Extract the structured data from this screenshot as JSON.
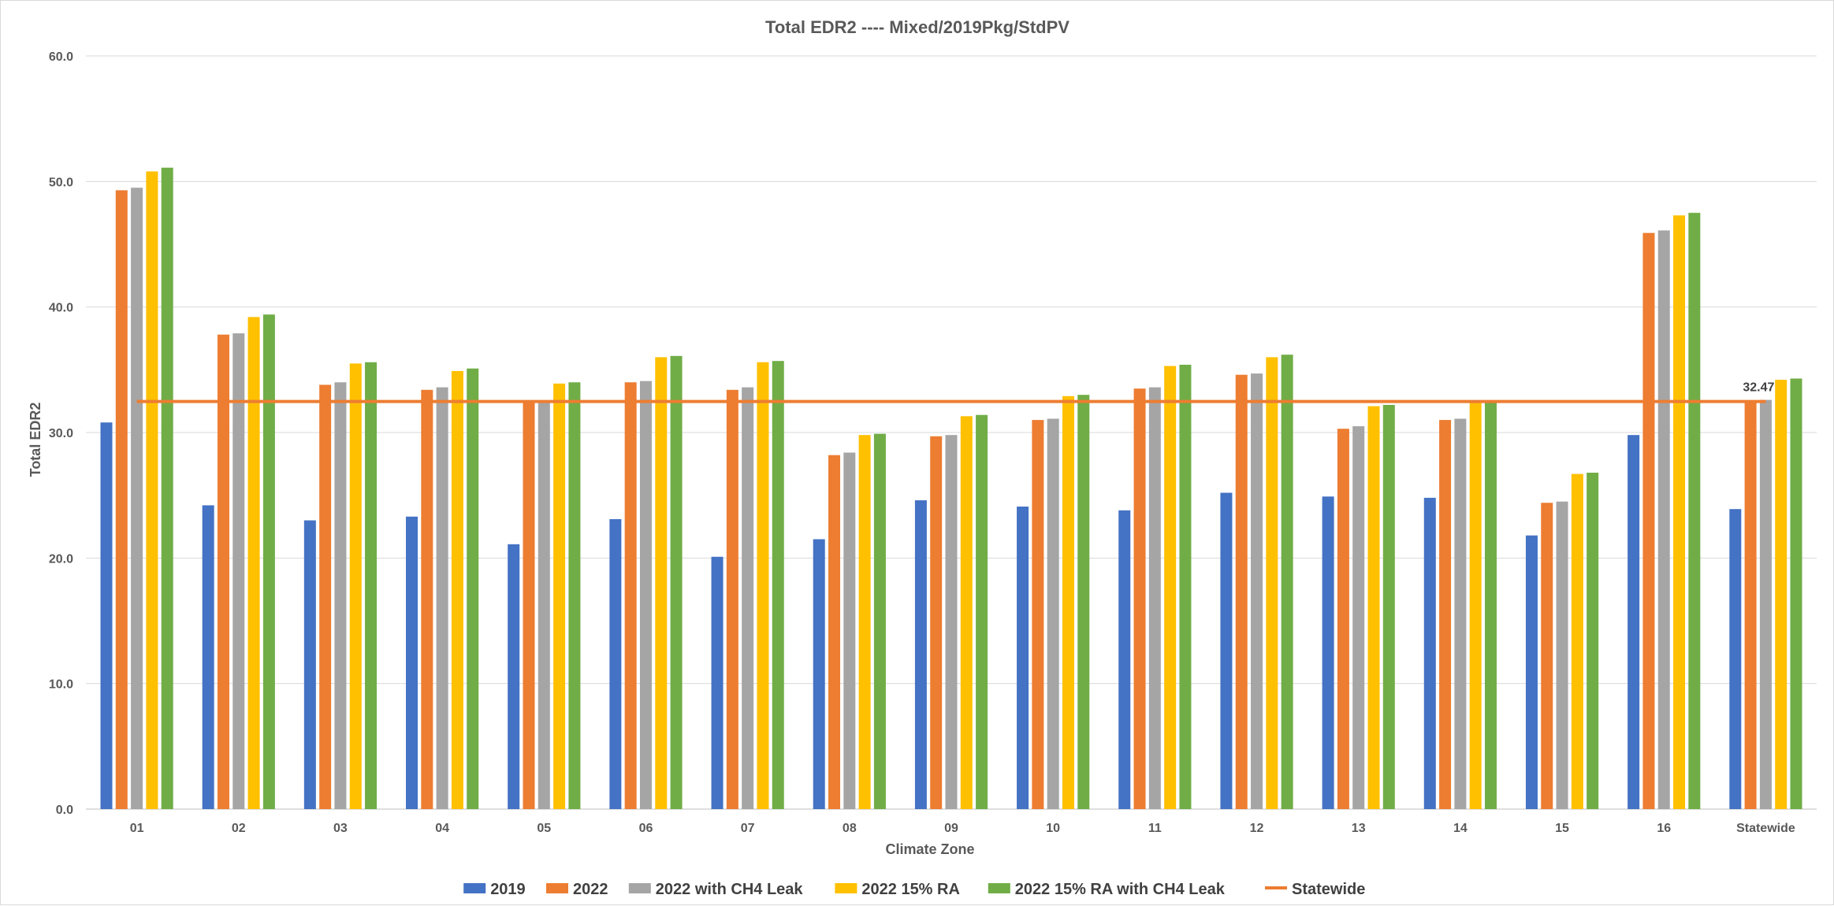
{
  "chart_data": {
    "type": "bar",
    "title": "Total  EDR2 ---- Mixed/2019Pkg/StdPV",
    "xlabel": "Climate Zone",
    "ylabel": "Total EDR2",
    "ylim": [
      0,
      60
    ],
    "yticks": [
      "0.0",
      "10.0",
      "20.0",
      "30.0",
      "40.0",
      "50.0",
      "60.0"
    ],
    "grid": true,
    "legend_position": "bottom",
    "categories": [
      "01",
      "02",
      "03",
      "04",
      "05",
      "06",
      "07",
      "08",
      "09",
      "10",
      "11",
      "12",
      "13",
      "14",
      "15",
      "16",
      "Statewide"
    ],
    "series": [
      {
        "name": "2019",
        "color": "#4472c4",
        "values": [
          30.8,
          24.2,
          23.0,
          23.3,
          21.1,
          23.1,
          20.1,
          21.5,
          24.6,
          24.1,
          23.8,
          25.2,
          24.9,
          24.8,
          21.8,
          29.8,
          23.9
        ]
      },
      {
        "name": "2022",
        "color": "#ed7d31",
        "values": [
          49.3,
          37.8,
          33.8,
          33.4,
          32.4,
          34.0,
          33.4,
          28.2,
          29.7,
          31.0,
          33.5,
          34.6,
          30.3,
          31.0,
          24.4,
          45.9,
          32.4
        ]
      },
      {
        "name": "2022 with CH4 Leak",
        "color": "#a5a5a5",
        "values": [
          49.5,
          37.9,
          34.0,
          33.6,
          32.5,
          34.1,
          33.6,
          28.4,
          29.8,
          31.1,
          33.6,
          34.7,
          30.5,
          31.1,
          24.5,
          46.1,
          32.6
        ]
      },
      {
        "name": "2022  15% RA",
        "color": "#ffc000",
        "values": [
          50.8,
          39.2,
          35.5,
          34.9,
          33.9,
          36.0,
          35.6,
          29.8,
          31.3,
          32.9,
          35.3,
          36.0,
          32.1,
          32.4,
          26.7,
          47.3,
          34.2
        ]
      },
      {
        "name": "2022  15% RA with CH4 Leak",
        "color": "#70ad47",
        "values": [
          51.1,
          39.4,
          35.6,
          35.1,
          34.0,
          36.1,
          35.7,
          29.9,
          31.4,
          33.0,
          35.4,
          36.2,
          32.2,
          32.5,
          26.8,
          47.5,
          34.3
        ]
      }
    ],
    "reference_line": {
      "name": "Statewide",
      "color": "#ed7d31",
      "value": 32.47,
      "label": "32.47"
    }
  }
}
